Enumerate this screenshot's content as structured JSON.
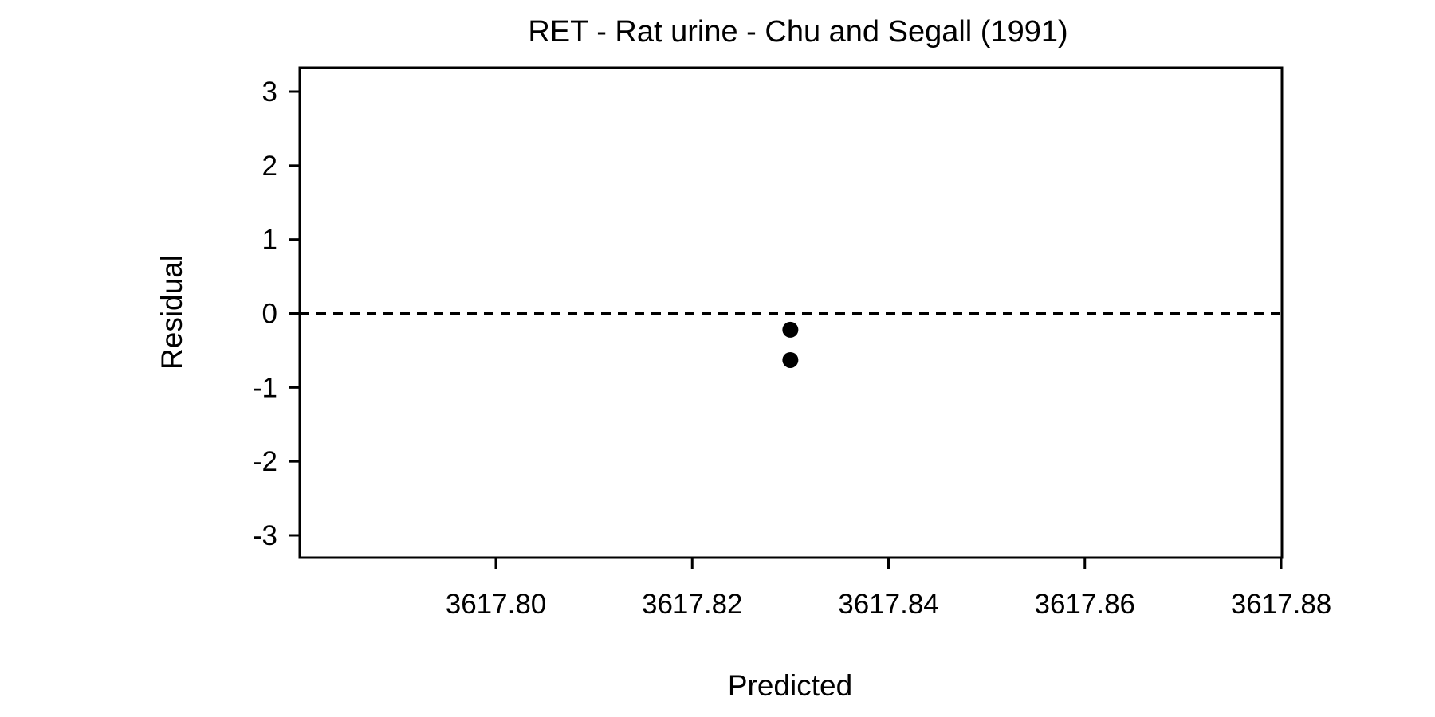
{
  "chart_data": {
    "type": "scatter",
    "title": "RET - Rat urine - Chu and Segall (1991)",
    "xlabel": "Predicted",
    "ylabel": "Residual",
    "xlim": [
      3617.78,
      3617.88
    ],
    "ylim": [
      -3.3,
      3.3
    ],
    "xticks": [
      3617.8,
      3617.82,
      3617.84,
      3617.86,
      3617.88
    ],
    "xtick_labels": [
      "3617.80",
      "3617.82",
      "3617.84",
      "3617.86",
      "3617.88"
    ],
    "yticks": [
      3,
      2,
      1,
      0,
      -1,
      -2,
      -3
    ],
    "ytick_labels": [
      "3",
      "2",
      "1",
      "0",
      "-1",
      "-2",
      "-3"
    ],
    "reference_line": {
      "y": 0,
      "style": "dashed"
    },
    "grid": false,
    "series": [
      {
        "points": [
          {
            "x": 3617.83,
            "y": -0.22
          },
          {
            "x": 3617.83,
            "y": -0.63
          }
        ],
        "color": "#000000"
      }
    ]
  }
}
